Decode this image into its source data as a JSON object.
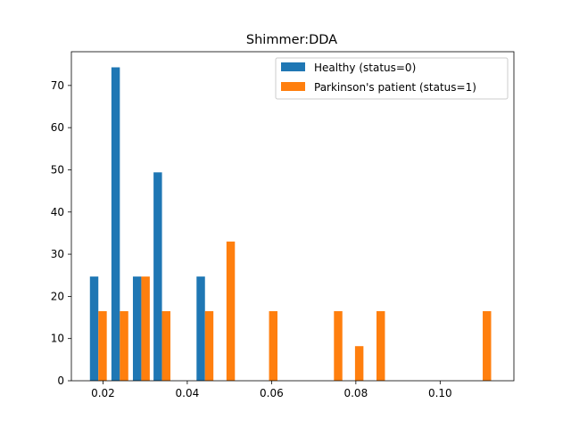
{
  "chart_data": {
    "type": "bar",
    "title": "Shimmer:DDA",
    "xlabel": "",
    "ylabel": "",
    "xlim": [
      0.0125,
      0.1175
    ],
    "ylim": [
      0,
      78
    ],
    "grid": false,
    "legend_position": "top-right",
    "x_ticks": [
      {
        "value": 0.02,
        "label": "0.02"
      },
      {
        "value": 0.04,
        "label": "0.04"
      },
      {
        "value": 0.06,
        "label": "0.06"
      },
      {
        "value": 0.08,
        "label": "0.08"
      },
      {
        "value": 0.1,
        "label": "0.10"
      }
    ],
    "y_ticks": [
      {
        "value": 0,
        "label": "0"
      },
      {
        "value": 10,
        "label": "10"
      },
      {
        "value": 20,
        "label": "20"
      },
      {
        "value": 30,
        "label": "30"
      },
      {
        "value": 40,
        "label": "40"
      },
      {
        "value": 50,
        "label": "50"
      },
      {
        "value": 60,
        "label": "60"
      },
      {
        "value": 70,
        "label": "70"
      }
    ],
    "bar_width": 0.002,
    "series": [
      {
        "name": "Healthy (status=0)",
        "color": "#1f77b4",
        "points": [
          {
            "x": 0.0179,
            "y": 24.7
          },
          {
            "x": 0.023,
            "y": 74.3
          },
          {
            "x": 0.0281,
            "y": 24.7
          },
          {
            "x": 0.033,
            "y": 49.4
          },
          {
            "x": 0.0432,
            "y": 24.7
          }
        ]
      },
      {
        "name": "Parkinson's patient (status=1)",
        "color": "#ff7f0e",
        "points": [
          {
            "x": 0.0199,
            "y": 16.5
          },
          {
            "x": 0.025,
            "y": 16.5
          },
          {
            "x": 0.0301,
            "y": 24.7
          },
          {
            "x": 0.035,
            "y": 16.5
          },
          {
            "x": 0.0452,
            "y": 16.5
          },
          {
            "x": 0.0503,
            "y": 33.0
          },
          {
            "x": 0.0604,
            "y": 16.5
          },
          {
            "x": 0.0758,
            "y": 16.5
          },
          {
            "x": 0.0808,
            "y": 8.2
          },
          {
            "x": 0.0859,
            "y": 16.5
          },
          {
            "x": 0.1111,
            "y": 16.5
          }
        ]
      }
    ]
  }
}
